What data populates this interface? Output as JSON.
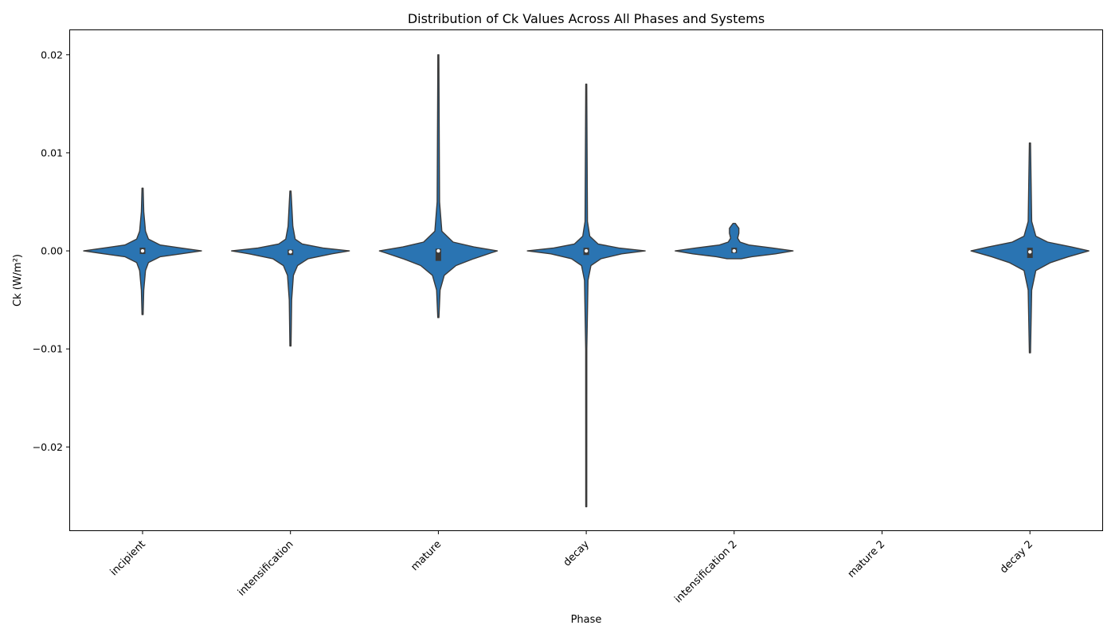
{
  "chart_data": {
    "type": "violin",
    "title": "Distribution of Ck Values Across All Phases and Systems",
    "xlabel": "Phase",
    "ylabel": "Ck (W/m²)",
    "ylim": [
      -0.0285,
      0.0225
    ],
    "yticks": [
      {
        "value": 0.02,
        "label": "0.02"
      },
      {
        "value": 0.01,
        "label": "0.01"
      },
      {
        "value": 0.0,
        "label": "0.00"
      },
      {
        "value": -0.01,
        "label": "−0.01"
      },
      {
        "value": -0.02,
        "label": "−0.02"
      }
    ],
    "grid": false,
    "legend": "none",
    "violin_color": "#2a74b2",
    "categories": [
      "incipient",
      "intensification",
      "mature",
      "decay",
      "intensification 2",
      "mature 2",
      "decay 2"
    ],
    "series": [
      {
        "category": "incipient",
        "min": -0.0065,
        "max": 0.0064,
        "q1": -0.0002,
        "median": 0.0,
        "q3": 0.0002,
        "density": [
          [
            -0.0065,
            0.01
          ],
          [
            -0.004,
            0.02
          ],
          [
            -0.002,
            0.05
          ],
          [
            -0.0012,
            0.1
          ],
          [
            -0.0006,
            0.3
          ],
          [
            -0.0003,
            0.65
          ],
          [
            0.0,
            1.0
          ],
          [
            0.0003,
            0.65
          ],
          [
            0.0006,
            0.3
          ],
          [
            0.0012,
            0.1
          ],
          [
            0.002,
            0.05
          ],
          [
            0.004,
            0.02
          ],
          [
            0.0064,
            0.01
          ]
        ]
      },
      {
        "category": "intensification",
        "min": -0.0097,
        "max": 0.0061,
        "q1": -0.0003,
        "median": -0.0001,
        "q3": 0.0,
        "density": [
          [
            -0.0097,
            0.01
          ],
          [
            -0.005,
            0.02
          ],
          [
            -0.0025,
            0.05
          ],
          [
            -0.0015,
            0.12
          ],
          [
            -0.0008,
            0.3
          ],
          [
            -0.0003,
            0.7
          ],
          [
            0.0,
            1.0
          ],
          [
            0.0003,
            0.55
          ],
          [
            0.0007,
            0.2
          ],
          [
            0.0012,
            0.08
          ],
          [
            0.0025,
            0.04
          ],
          [
            0.0061,
            0.01
          ]
        ]
      },
      {
        "category": "mature",
        "min": -0.0068,
        "max": 0.02,
        "q1": -0.0009,
        "median": 0.0,
        "q3": 0.0001,
        "density": [
          [
            -0.0068,
            0.01
          ],
          [
            -0.004,
            0.03
          ],
          [
            -0.0025,
            0.1
          ],
          [
            -0.0015,
            0.3
          ],
          [
            -0.0008,
            0.6
          ],
          [
            -0.0002,
            0.9
          ],
          [
            0.0,
            1.0
          ],
          [
            0.0004,
            0.6
          ],
          [
            0.0009,
            0.25
          ],
          [
            0.002,
            0.06
          ],
          [
            0.005,
            0.02
          ],
          [
            0.02,
            0.008
          ]
        ]
      },
      {
        "category": "decay",
        "min": -0.0261,
        "max": 0.017,
        "q1": -0.0003,
        "median": 0.0,
        "q3": 0.0002,
        "density": [
          [
            -0.0261,
            0.008
          ],
          [
            -0.01,
            0.01
          ],
          [
            -0.003,
            0.03
          ],
          [
            -0.0015,
            0.08
          ],
          [
            -0.0008,
            0.25
          ],
          [
            -0.0003,
            0.6
          ],
          [
            0.0,
            1.0
          ],
          [
            0.0003,
            0.55
          ],
          [
            0.0007,
            0.2
          ],
          [
            0.0015,
            0.06
          ],
          [
            0.003,
            0.02
          ],
          [
            0.017,
            0.008
          ]
        ]
      },
      {
        "category": "intensification 2",
        "min": -0.0008,
        "max": 0.0028,
        "q1": -0.0001,
        "median": 0.0,
        "q3": 0.0002,
        "density": [
          [
            -0.0008,
            0.12
          ],
          [
            -0.0006,
            0.3
          ],
          [
            -0.0003,
            0.7
          ],
          [
            0.0,
            1.0
          ],
          [
            0.0003,
            0.65
          ],
          [
            0.0006,
            0.25
          ],
          [
            0.0009,
            0.1
          ],
          [
            0.0013,
            0.06
          ],
          [
            0.0018,
            0.08
          ],
          [
            0.0023,
            0.08
          ],
          [
            0.0028,
            0.02
          ]
        ]
      },
      {
        "category": "mature 2",
        "empty": true
      },
      {
        "category": "decay 2",
        "min": -0.0104,
        "max": 0.011,
        "q1": -0.0006,
        "median": -0.0001,
        "q3": 0.0002,
        "density": [
          [
            -0.0104,
            0.01
          ],
          [
            -0.004,
            0.03
          ],
          [
            -0.002,
            0.1
          ],
          [
            -0.0012,
            0.35
          ],
          [
            -0.0006,
            0.65
          ],
          [
            0.0,
            1.0
          ],
          [
            0.0004,
            0.7
          ],
          [
            0.0009,
            0.3
          ],
          [
            0.0015,
            0.1
          ],
          [
            0.003,
            0.03
          ],
          [
            0.011,
            0.01
          ]
        ]
      }
    ]
  }
}
